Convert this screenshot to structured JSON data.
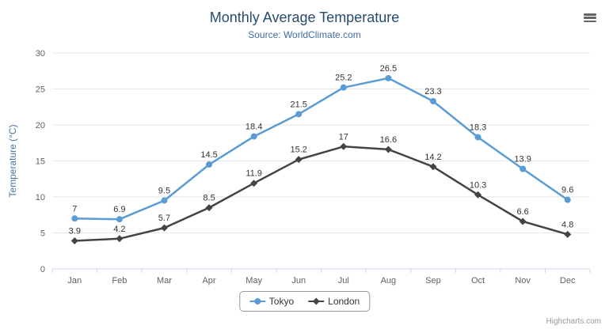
{
  "colors": {
    "title": "#274b6d",
    "subtitle": "#3E6DA6"
  },
  "chart_data": {
    "type": "line",
    "title": "Monthly Average Temperature",
    "subtitle": "Source: WorldClimate.com",
    "credits": "Highcharts.com",
    "categories": [
      "Jan",
      "Feb",
      "Mar",
      "Apr",
      "May",
      "Jun",
      "Jul",
      "Aug",
      "Sep",
      "Oct",
      "Nov",
      "Dec"
    ],
    "series": [
      {
        "name": "Tokyo",
        "color": "#5b9bd5",
        "marker": "circle",
        "values": [
          7,
          6.9,
          9.5,
          14.5,
          18.4,
          21.5,
          25.2,
          26.5,
          23.3,
          18.3,
          13.9,
          9.6
        ]
      },
      {
        "name": "London",
        "color": "#434348",
        "marker": "diamond",
        "values": [
          3.9,
          4.2,
          5.7,
          8.5,
          11.9,
          15.2,
          17,
          16.6,
          14.2,
          10.3,
          6.6,
          4.8
        ]
      }
    ],
    "xlabel": "",
    "ylabel": "Temperature (°C)",
    "ylim": [
      0,
      30
    ],
    "ytick_interval": 5,
    "grid": true,
    "data_labels": true,
    "legend_position": "bottom",
    "grid_color": "#e6e6e6",
    "axis_line_color": "#ccd6eb",
    "axis_label_color": "#606060",
    "ylabel_color": "#4d759e",
    "data_label_color": "#333333"
  }
}
